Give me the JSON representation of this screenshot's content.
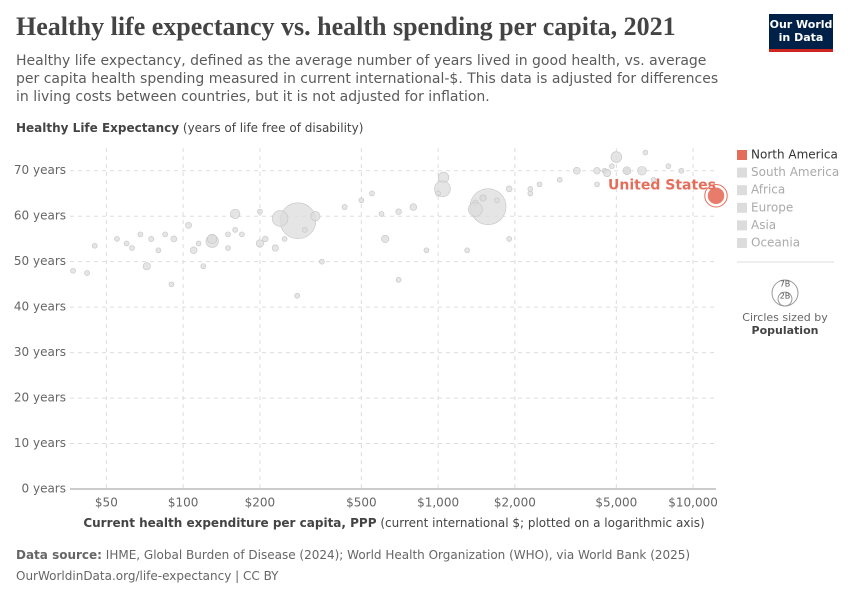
{
  "logo": [
    "Our World",
    "in Data"
  ],
  "chart_data": {
    "type": "scatter",
    "title": "Healthy life expectancy vs. health spending per capita, 2021",
    "subtitle": "Healthy life expectancy, defined as the average number of years lived in good health, vs. average per capita health spending measured in current international-$. This data is adjusted for differences in living costs between countries, but it is not adjusted for inflation.",
    "y_label": "Healthy Life Expectancy",
    "y_label_note": "(years of life free of disability)",
    "x_label": "Current health expenditure per capita, PPP",
    "x_label_note": "(current international $; plotted on a logarithmic axis)",
    "source_label": "Data source:",
    "source": "IHME, Global Burden of Disease (2024); World Health Organization (WHO), via World Bank (2025)",
    "url": "OurWorldinData.org/life-expectancy | CC BY",
    "annotation": "United States",
    "x_log": true,
    "grid": true,
    "xlim": [
      36,
      12300
    ],
    "ylim": [
      0,
      75
    ],
    "xticks": [
      {
        "value": 50,
        "label": "$50"
      },
      {
        "value": 100,
        "label": "$100"
      },
      {
        "value": 200,
        "label": "$200"
      },
      {
        "value": 500,
        "label": "$500"
      },
      {
        "value": 1000,
        "label": "$1,000"
      },
      {
        "value": 2000,
        "label": "$2,000"
      },
      {
        "value": 5000,
        "label": "$5,000"
      },
      {
        "value": 10000,
        "label": "$10,000"
      }
    ],
    "yticks": [
      {
        "value": 0,
        "label": "0 years"
      },
      {
        "value": 10,
        "label": "10 years"
      },
      {
        "value": 20,
        "label": "20 years"
      },
      {
        "value": 30,
        "label": "30 years"
      },
      {
        "value": 40,
        "label": "40 years"
      },
      {
        "value": 50,
        "label": "50 years"
      },
      {
        "value": 60,
        "label": "60 years"
      },
      {
        "value": 70,
        "label": "70 years"
      }
    ],
    "legend_position": "right",
    "size_legend": {
      "title": "Circles sized by",
      "variable": "Population",
      "values": [
        {
          "value": 7000000000,
          "label": "7B"
        },
        {
          "value": 2000000000,
          "label": "2B"
        }
      ]
    },
    "series": [
      {
        "name": "North America",
        "color": "#e56e5a",
        "x": [
          12300
        ],
        "y": [
          64.5
        ],
        "size": [
          332000000
        ]
      },
      {
        "name": "South America",
        "color": "#dcdcdc",
        "x": [
          300,
          600,
          800,
          1400,
          1500,
          2300,
          1700
        ],
        "y": [
          57,
          60.5,
          62,
          61.5,
          64,
          66,
          63.5
        ],
        "size": [
          12000000,
          20000000,
          50000000,
          214000000,
          45000000,
          19000000,
          3500000
        ]
      },
      {
        "name": "Africa",
        "color": "#dcdcdc",
        "x": [
          37,
          42,
          45,
          55,
          60,
          63,
          68,
          72,
          75,
          80,
          85,
          90,
          92,
          110,
          115,
          120,
          130,
          150,
          160,
          170,
          200,
          210,
          230,
          280,
          350,
          620,
          700,
          900,
          1300,
          1900
        ],
        "y": [
          48,
          47.5,
          53.5,
          55,
          54,
          53,
          56,
          49,
          55,
          52.5,
          56,
          45,
          55,
          52.5,
          54,
          49,
          55,
          53,
          57,
          56,
          54,
          55,
          53,
          42.5,
          50,
          55,
          46,
          52.5,
          52.5,
          55
        ],
        "size": [
          20000000,
          15000000,
          10000000,
          8000000,
          12000000,
          25000000,
          20000000,
          60000000,
          30000000,
          15000000,
          10000000,
          20000000,
          40000000,
          50000000,
          8000000,
          20000000,
          100000000,
          28000000,
          5000000,
          3000000,
          60000000,
          35000000,
          45000000,
          2000000,
          5000000,
          60000000,
          2500000,
          3000000,
          2000000,
          2000000
        ]
      },
      {
        "name": "Europe",
        "color": "#dcdcdc",
        "x": [
          1000,
          1500,
          1900,
          2500,
          3000,
          4200,
          5500,
          6300,
          7000,
          8000,
          6500,
          9000,
          4600,
          4200
        ],
        "y": [
          65,
          64,
          66,
          67,
          68,
          67,
          70,
          70,
          68,
          71,
          74,
          70,
          69.5,
          70
        ],
        "size": [
          7000000,
          10000000,
          38000000,
          10000000,
          4000000,
          10000000,
          67000000,
          83000000,
          9000000,
          5000000,
          400000,
          6000000,
          60000000,
          47000000
        ]
      },
      {
        "name": "Asia",
        "color": "#dcdcdc",
        "x": [
          105,
          130,
          282,
          240,
          160,
          200,
          330,
          430,
          500,
          550,
          700,
          1050,
          1040,
          1570,
          1400,
          2300,
          4800,
          5000,
          3500
        ],
        "y": [
          58,
          54.5,
          59,
          59.5,
          60.5,
          61,
          60,
          62,
          63.5,
          65,
          61,
          68.5,
          66,
          62.1,
          63,
          65,
          71,
          73,
          70
        ],
        "size": [
          40000000,
          170000000,
          1400000000,
          270000000,
          100000000,
          5000000,
          97000000,
          30000000,
          20000000,
          10000000,
          35000000,
          125000000,
          275000000,
          1410000000,
          30000000,
          20000000,
          5000000,
          125000000,
          52000000
        ]
      },
      {
        "name": "Oceania",
        "color": "#dcdcdc",
        "x": [
          5500,
          4500,
          150,
          250
        ],
        "y": [
          70,
          70,
          56,
          55
        ],
        "size": [
          26000000,
          5000000,
          9000000,
          300000
        ]
      }
    ]
  }
}
